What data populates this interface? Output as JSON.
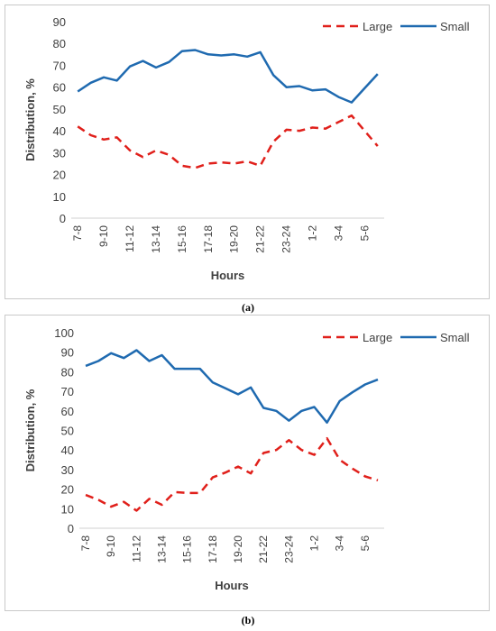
{
  "captions": [
    "(a)",
    "(b)"
  ],
  "chart_data": [
    {
      "type": "line",
      "categories": [
        "7-8",
        "8-9",
        "9-10",
        "10-11",
        "11-12",
        "12-13",
        "13-14",
        "14-15",
        "15-16",
        "16-17",
        "17-18",
        "18-19",
        "19-20",
        "20-21",
        "21-22",
        "22-23",
        "23-24",
        "0-1",
        "1-2",
        "2-3",
        "3-4",
        "4-5",
        "5-6",
        "6-7"
      ],
      "tick_labels": [
        "7-8",
        "9-10",
        "11-12",
        "13-14",
        "15-16",
        "17-18",
        "19-20",
        "21-22",
        "23-24",
        "1-2",
        "3-4",
        "5-6"
      ],
      "series": [
        {
          "name": "Large",
          "color": "#e0201b",
          "dash": true,
          "values": [
            42,
            38,
            36,
            37,
            31,
            28,
            31,
            29,
            24,
            23,
            25,
            25.5,
            25,
            26,
            24,
            35,
            40.5,
            40,
            41.5,
            41,
            44,
            47,
            40,
            33
          ]
        },
        {
          "name": "Small",
          "color": "#1f6ab0",
          "dash": false,
          "values": [
            58,
            62,
            64.5,
            63,
            69.5,
            72,
            69,
            71.5,
            76.5,
            77,
            75,
            74.5,
            75,
            74,
            76,
            65.5,
            60,
            60.5,
            58.5,
            59,
            55.5,
            53,
            59.5,
            66
          ]
        }
      ],
      "yticks": [
        0,
        10,
        20,
        30,
        40,
        50,
        60,
        70,
        80,
        90
      ],
      "ylim": [
        0,
        90
      ],
      "xlabel": "Hours",
      "ylabel": "Distribution, %",
      "grid": false,
      "legend": "top-right"
    },
    {
      "type": "line",
      "categories": [
        "7-8",
        "8-9",
        "9-10",
        "10-11",
        "11-12",
        "12-13",
        "13-14",
        "14-15",
        "15-16",
        "16-17",
        "17-18",
        "18-19",
        "19-20",
        "20-21",
        "21-22",
        "22-23",
        "23-24",
        "0-1",
        "1-2",
        "2-3",
        "3-4",
        "4-5",
        "5-6",
        "6-7"
      ],
      "tick_labels": [
        "7-8",
        "9-10",
        "11-12",
        "13-14",
        "15-16",
        "17-18",
        "19-20",
        "21-22",
        "23-24",
        "1-2",
        "3-4",
        "5-6"
      ],
      "series": [
        {
          "name": "Large",
          "color": "#e0201b",
          "dash": true,
          "values": [
            17,
            14.5,
            11,
            13.5,
            9,
            15,
            12,
            18.5,
            18,
            18,
            26,
            28.5,
            31.5,
            28,
            38.5,
            40,
            45,
            40,
            37.5,
            46,
            35,
            30.5,
            26.5,
            24.5
          ]
        },
        {
          "name": "Small",
          "color": "#1f6ab0",
          "dash": false,
          "values": [
            83,
            85.5,
            89.5,
            87,
            91,
            85.5,
            88.5,
            81.5,
            81.5,
            81.5,
            74.5,
            71.5,
            68.5,
            72,
            61.5,
            60,
            55,
            60,
            62,
            54,
            65,
            69.5,
            73.5,
            76
          ]
        }
      ],
      "yticks": [
        0,
        10,
        20,
        30,
        40,
        50,
        60,
        70,
        80,
        90,
        100
      ],
      "ylim": [
        0,
        100
      ],
      "xlabel": "Hours",
      "ylabel": "Distribution, %",
      "grid": false,
      "legend": "top-right"
    }
  ]
}
